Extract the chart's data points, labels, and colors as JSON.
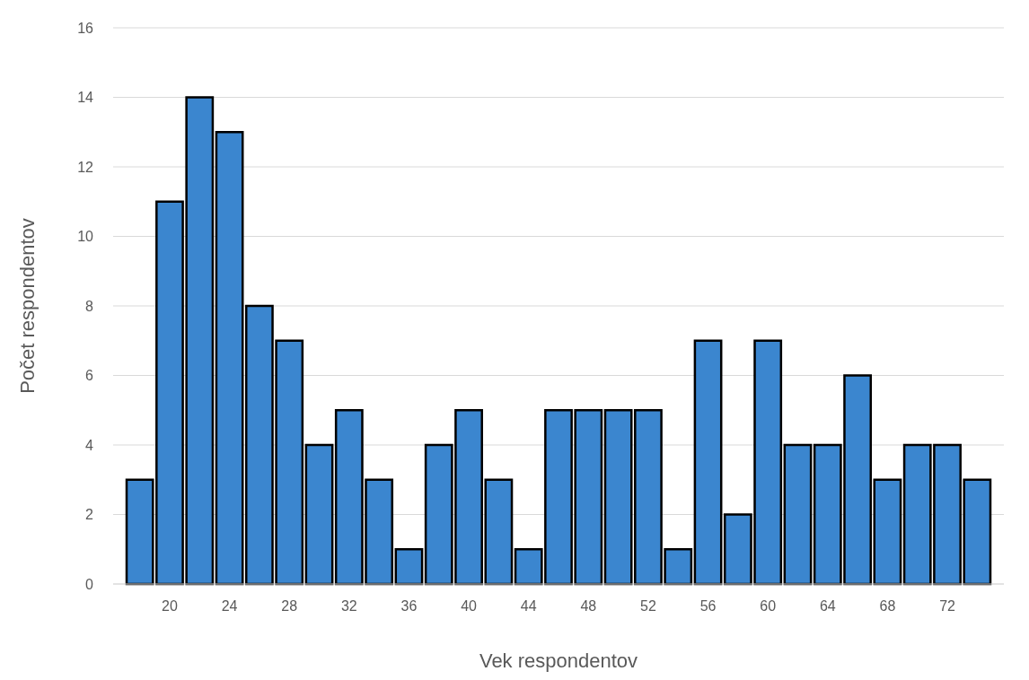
{
  "chart_data": {
    "type": "bar",
    "xlabel": "Vek respondentov",
    "ylabel": "Počet respondentov",
    "categories": [
      null,
      "20",
      null,
      "24",
      null,
      "28",
      null,
      "32",
      null,
      "36",
      null,
      "40",
      null,
      "44",
      null,
      "48",
      null,
      "52",
      null,
      "56",
      null,
      "60",
      null,
      "64",
      null,
      "68",
      null,
      "72",
      null
    ],
    "values": [
      3,
      11,
      14,
      13,
      8,
      7,
      4,
      5,
      3,
      1,
      4,
      5,
      3,
      1,
      5,
      5,
      5,
      5,
      1,
      7,
      2,
      7,
      4,
      4,
      6,
      3,
      4,
      4,
      3
    ],
    "color": "#3b86cf",
    "ylim": [
      0,
      16
    ],
    "yticks": [
      0,
      2,
      4,
      6,
      8,
      10,
      12,
      14,
      16
    ],
    "grid": "y"
  }
}
